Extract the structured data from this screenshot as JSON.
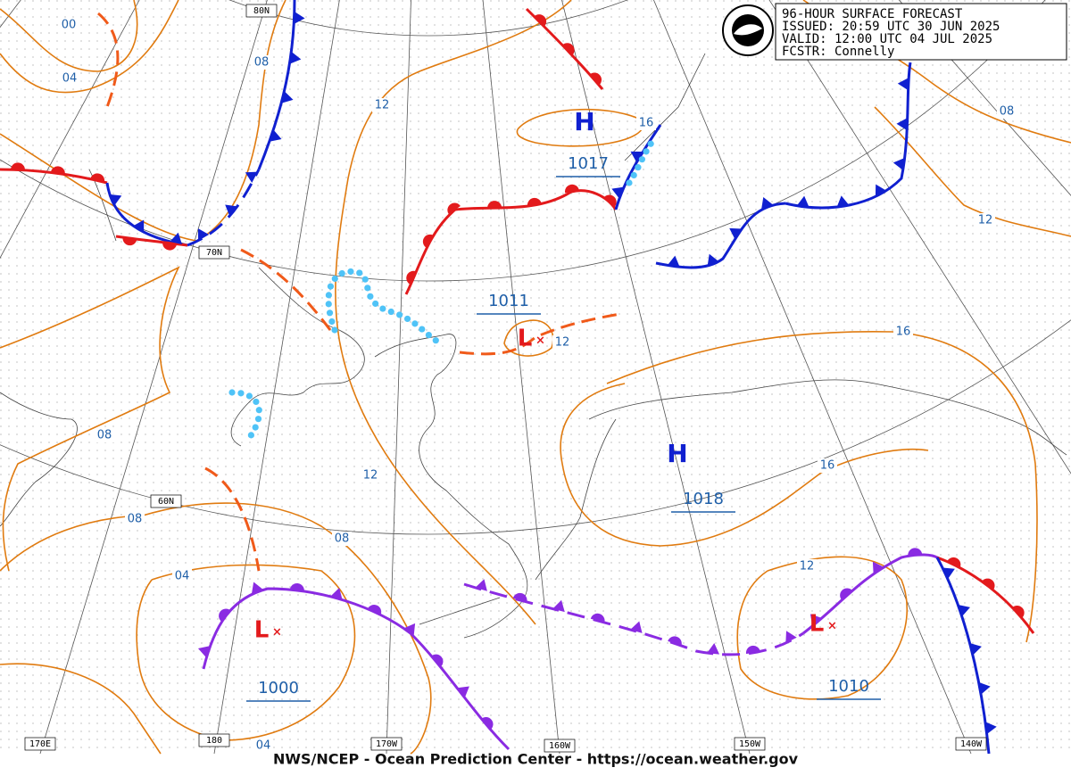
{
  "header": {
    "lines": [
      "96-HOUR SURFACE FORECAST",
      "ISSUED: 20:59 UTC 30 JUN 2025",
      "VALID: 12:00 UTC 04 JUL 2025",
      "FCSTR: Connelly"
    ]
  },
  "pressure_systems": [
    {
      "type": "H",
      "pressure": "1017"
    },
    {
      "type": "L",
      "pressure": "1011"
    },
    {
      "type": "H",
      "pressure": "1018"
    },
    {
      "type": "L",
      "pressure": "1000"
    },
    {
      "type": "L",
      "pressure": "1010"
    }
  ],
  "isobar_labels": [
    "00",
    "04",
    "08",
    "12",
    "16",
    "08",
    "12",
    "16",
    "12",
    "08",
    "12",
    "16",
    "08",
    "08",
    "12",
    "04",
    "04"
  ],
  "grid_labels": [
    "80N",
    "70N",
    "60N",
    "170E",
    "180",
    "170W",
    "160W",
    "150W",
    "140W"
  ],
  "footer": "NWS/NCEP - Ocean Prediction Center - https://ocean.weather.gov"
}
